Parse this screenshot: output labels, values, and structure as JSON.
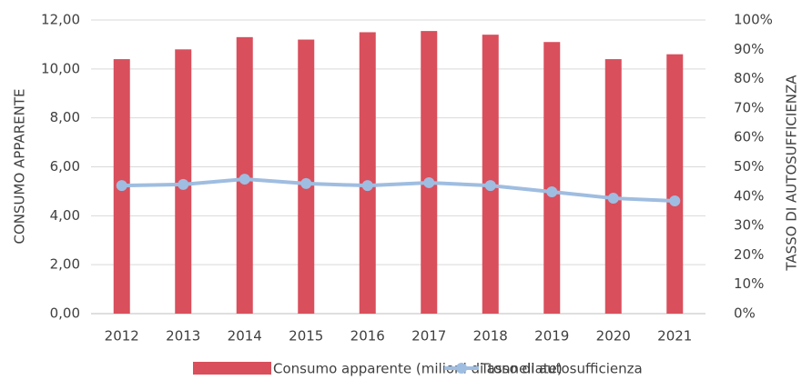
{
  "chart_data": {
    "type": "bar_line",
    "y_label": "CONSUMO APPARENTE",
    "y2_label": "TASSO DI AUTOSUFFICIENZA",
    "categories": [
      "2012",
      "2013",
      "2014",
      "2015",
      "2016",
      "2017",
      "2018",
      "2019",
      "2020",
      "2021"
    ],
    "series": [
      {
        "name": "Consumo apparente (milioni di tonnellate)",
        "type": "bar",
        "color": "#d94f5c",
        "values": [
          10.4,
          10.8,
          11.3,
          11.2,
          11.5,
          11.55,
          11.4,
          11.1,
          10.4,
          10.6
        ]
      },
      {
        "name": "Tasso di autosufficienza",
        "type": "line",
        "axis": "y2",
        "color": "#9fbde0",
        "values": [
          43.6,
          44,
          45.8,
          44.3,
          43.6,
          44.6,
          43.6,
          41.5,
          39.3,
          38.4
        ]
      }
    ],
    "ylim": [
      0,
      12
    ],
    "yticks": [
      {
        "value": 0,
        "label": "0,00"
      },
      {
        "value": 2,
        "label": "2,00"
      },
      {
        "value": 4,
        "label": "4,00"
      },
      {
        "value": 6,
        "label": "6,00"
      },
      {
        "value": 8,
        "label": "8,00"
      },
      {
        "value": 10,
        "label": "10,00"
      },
      {
        "value": 12,
        "label": "12,00"
      }
    ],
    "y2lim": [
      0,
      100
    ],
    "y2ticks": [
      {
        "value": 0,
        "label": "0%"
      },
      {
        "value": 10,
        "label": "10%"
      },
      {
        "value": 20,
        "label": "20%"
      },
      {
        "value": 30,
        "label": "30%"
      },
      {
        "value": 40,
        "label": "40%"
      },
      {
        "value": 50,
        "label": "50%"
      },
      {
        "value": 60,
        "label": "60%"
      },
      {
        "value": 70,
        "label": "70%"
      },
      {
        "value": 80,
        "label": "80%"
      },
      {
        "value": 90,
        "label": "90%"
      },
      {
        "value": 100,
        "label": "100%"
      }
    ],
    "grid": true
  }
}
